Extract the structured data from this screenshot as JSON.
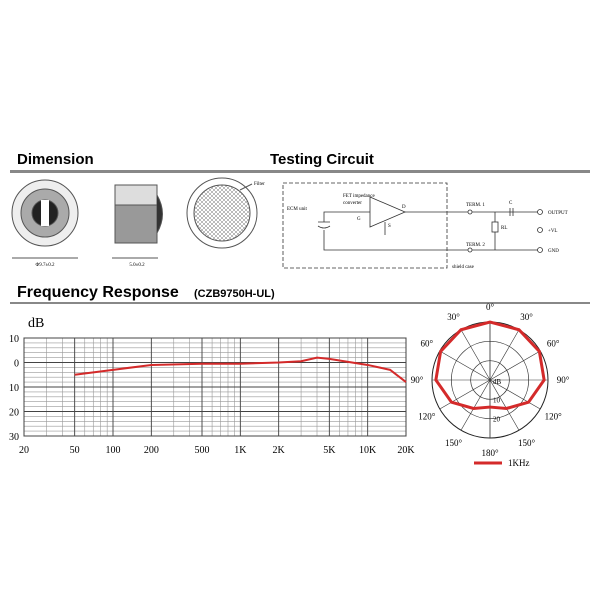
{
  "dimension": {
    "title": "Dimension",
    "diameter": "Φ9.7±0.2",
    "height": "5.0±0.2",
    "filter": "Filter"
  },
  "testing_circuit": {
    "title": "Testing Circuit",
    "ecm": "ECM unit",
    "fet": [
      "FET impedance",
      "converter"
    ],
    "g": "G",
    "d": "D",
    "s": "S",
    "term1": "TERM. 1",
    "c": "C",
    "rl": "RL",
    "output": "OUTPUT",
    "vl": "+VL",
    "term2": "TERM. 2",
    "gnd": "GND",
    "shield": "shield case"
  },
  "frequency_response": {
    "title": "Frequency Response",
    "model": "(CZB9750H-UL)",
    "chart_data": {
      "type": "line",
      "y_label": "dB",
      "log_x": true,
      "grid": true,
      "color": "#d42a2a",
      "x": [
        50,
        100,
        200,
        500,
        1000,
        2000,
        3000,
        4000,
        5000,
        10000,
        15000,
        20000
      ],
      "values": [
        -5,
        -3,
        -1,
        -0.5,
        -0.5,
        0,
        0.5,
        2,
        1.5,
        -1,
        -3,
        -8
      ],
      "xlim": [
        20,
        20000
      ],
      "xticks": [
        20,
        50,
        100,
        200,
        500,
        {
          "value": 1000,
          "label": "1K"
        },
        {
          "value": 2000,
          "label": "2K"
        },
        {
          "value": 5000,
          "label": "5K"
        },
        {
          "value": 10000,
          "label": "10K"
        },
        {
          "value": 20000,
          "label": "20K"
        }
      ],
      "ylim": [
        -30,
        10
      ],
      "yticks": [
        10,
        0,
        {
          "value": -10,
          "label": "10"
        },
        {
          "value": -20,
          "label": "20"
        },
        {
          "value": -30,
          "label": "30"
        }
      ]
    }
  },
  "polar": {
    "type": "polar",
    "r_label": "dB",
    "rlim": [
      -30,
      0
    ],
    "rticks": [
      {
        "value": -10,
        "label": "10"
      },
      {
        "value": -20,
        "label": "20"
      }
    ],
    "angle_ticks": [
      {
        "value": 0,
        "label": "0°"
      },
      {
        "value": 30,
        "label": "30°"
      },
      {
        "value": 60,
        "label": "60°"
      },
      {
        "value": 90,
        "label": "90°"
      },
      {
        "value": 120,
        "label": "120°"
      },
      {
        "value": 150,
        "label": "150°"
      },
      {
        "value": 180,
        "label": "180°"
      }
    ],
    "series": [
      {
        "name": "1KHz",
        "color": "#d42a2a",
        "angles": [
          -180,
          -150,
          -120,
          -90,
          -60,
          -30,
          0,
          30,
          60,
          90,
          120,
          150,
          180
        ],
        "values": [
          -16,
          -13,
          -7,
          -2,
          -0.5,
          0,
          0,
          0,
          -0.5,
          -2,
          -7,
          -13,
          -16
        ]
      }
    ]
  }
}
